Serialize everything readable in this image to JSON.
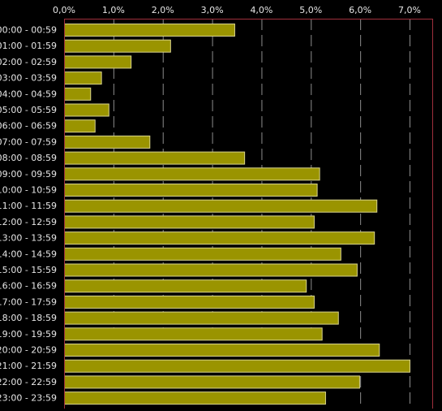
{
  "colors": {
    "background": "#000000",
    "bar_fill": "#9a9400",
    "bar_stroke": "#d9d48c",
    "grid": "#8c8c8c",
    "frame": "#a0303c",
    "text": "#e6e6e6"
  },
  "chart_data": {
    "type": "bar",
    "orientation": "horizontal",
    "title": "",
    "xlabel": "",
    "ylabel": "",
    "xlim": [
      0,
      7
    ],
    "x_ticks": [
      0,
      1,
      2,
      3,
      4,
      5,
      6,
      7
    ],
    "x_tick_labels": [
      "0,0%",
      "1,0%",
      "2,0%",
      "3,0%",
      "4,0%",
      "5,0%",
      "6,0%",
      "7,0%"
    ],
    "x_tick_position": "top",
    "grid": "vertical dashed",
    "legend": "none",
    "categories": [
      "00:00 - 00:59",
      "01:00 - 01:59",
      "02:00 - 02:59",
      "03:00 - 03:59",
      "04:00 - 04:59",
      "05:00 - 05:59",
      "06:00 - 06:59",
      "07:00 - 07:59",
      "08:00 - 08:59",
      "09:00 - 09:59",
      "10:00 - 10:59",
      "11:00 - 11:59",
      "12:00 - 12:59",
      "13:00 - 13:59",
      "14:00 - 14:59",
      "15:00 - 15:59",
      "16:00 - 16:59",
      "17:00 - 17:59",
      "18:00 - 18:59",
      "19:00 - 19:59",
      "20:00 - 20:59",
      "21:00 - 21:59",
      "22:00 - 22:59",
      "23:00 - 23:59"
    ],
    "values": [
      3.45,
      2.15,
      1.35,
      0.75,
      0.53,
      0.9,
      0.62,
      1.73,
      3.65,
      5.17,
      5.12,
      6.33,
      5.06,
      6.28,
      5.6,
      5.93,
      4.9,
      5.06,
      5.55,
      5.22,
      6.38,
      7.0,
      5.98,
      5.29
    ]
  }
}
